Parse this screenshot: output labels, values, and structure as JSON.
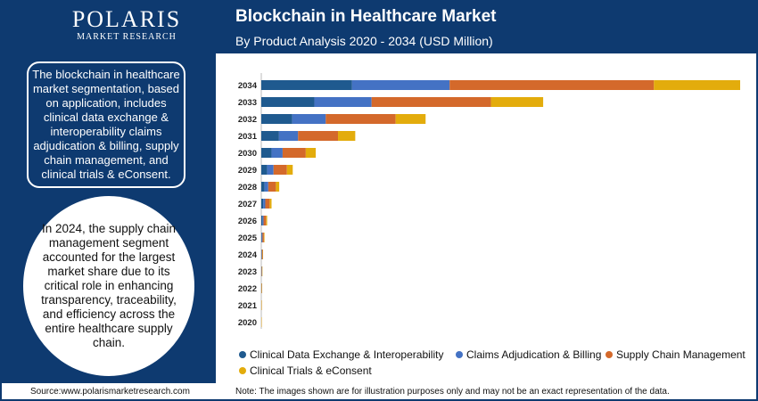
{
  "brand": {
    "name": "POLARIS",
    "tagline": "MARKET RESEARCH"
  },
  "header": {
    "title": "Blockchain in Healthcare Market",
    "subtitle": "By Product Analysis 2020 - 2034 (USD Million)"
  },
  "sidebar": {
    "description": "The blockchain in healthcare market segmentation, based on application, includes clinical data exchange & interoperability claims adjudication & billing, supply chain management, and clinical trials & eConsent.",
    "highlight": "In 2024, the supply chain management segment accounted for the largest market share due to its critical role in enhancing transparency, traceability, and efficiency across the entire healthcare supply chain."
  },
  "footer": {
    "source": "Source:www.polarismarketresearch.com",
    "note": "Note: The images shown are for illustration purposes only and may not be an exact representation of the data."
  },
  "colors": {
    "header_bg": "#0e3a70",
    "series": [
      "#1f5a8f",
      "#4472c4",
      "#d4692b",
      "#e3ac0c"
    ]
  },
  "chart_data": {
    "type": "bar",
    "orientation": "horizontal",
    "stacked": true,
    "title": "Blockchain in Healthcare Market",
    "subtitle": "By Product Analysis 2020 - 2034 (USD Million)",
    "categories": [
      "2034",
      "2033",
      "2032",
      "2031",
      "2030",
      "2029",
      "2028",
      "2027",
      "2026",
      "2025",
      "2024",
      "2023",
      "2022",
      "2021",
      "2020"
    ],
    "series": [
      {
        "name": "Clinical Data Exchange & Interoperability",
        "values": [
          2000,
          1170,
          680,
          390,
          225,
          130,
          74,
          42,
          24,
          13,
          7,
          4,
          2,
          1,
          0.5
        ]
      },
      {
        "name": "Claims Adjudication & Billing",
        "values": [
          2150,
          1260,
          740,
          420,
          245,
          140,
          80,
          46,
          26,
          14,
          8,
          4,
          2,
          1,
          0.5
        ]
      },
      {
        "name": "Supply Chain Management",
        "values": [
          4500,
          2630,
          1540,
          880,
          510,
          295,
          168,
          96,
          55,
          30,
          16,
          9,
          5,
          2,
          1
        ]
      },
      {
        "name": "Clinical Trials & eConsent",
        "values": [
          1900,
          1150,
          660,
          380,
          220,
          128,
          73,
          42,
          24,
          13,
          7,
          4,
          2,
          1,
          0.5
        ]
      }
    ],
    "xlim": [
      0,
      10550
    ],
    "legend": "bottom",
    "grid": false
  }
}
